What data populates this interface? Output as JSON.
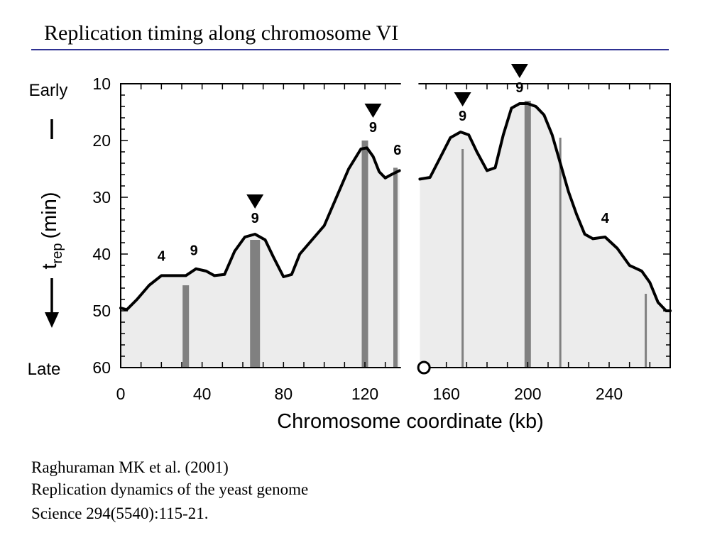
{
  "slide": {
    "title": "Replication timing along chromosome VI"
  },
  "reference": {
    "line1": "Raghuraman MK et al. (2001)",
    "line2": "Replication dynamics of the yeast genome",
    "line3": "Science 294(5540):115-21."
  },
  "colors": {
    "title_rule": "#2e3192",
    "area_fill": "#ececec",
    "curve": "#000000",
    "origin_bar": "#808080"
  },
  "chart_data": {
    "type": "area",
    "title": "",
    "xlabel": "Chromosome coordinate (kb)",
    "ylabel": "t",
    "ylabel_sub": "rep",
    "ylabel_unit": "(min)",
    "early_label": "Early",
    "late_label": "Late",
    "xlim": [
      0,
      270
    ],
    "ylim": [
      10,
      60
    ],
    "y_inverted": true,
    "x_ticks": [
      0,
      40,
      80,
      120,
      160,
      200,
      240
    ],
    "y_ticks": [
      10,
      20,
      30,
      40,
      50,
      60
    ],
    "gap": [
      137,
      147
    ],
    "centromere_kb": 149,
    "series": [
      {
        "segment": "left",
        "points": [
          [
            0,
            49.5
          ],
          [
            3,
            49.8
          ],
          [
            8,
            48
          ],
          [
            14,
            45.5
          ],
          [
            20,
            43.8
          ],
          [
            27,
            43.8
          ],
          [
            32,
            43.8
          ],
          [
            37,
            42.6
          ],
          [
            42,
            43
          ],
          [
            46,
            43.8
          ],
          [
            51,
            43.6
          ],
          [
            56,
            39.5
          ],
          [
            61,
            37
          ],
          [
            66,
            36.5
          ],
          [
            71,
            37.5
          ],
          [
            75,
            40.5
          ],
          [
            80,
            44
          ],
          [
            84,
            43.6
          ],
          [
            88,
            40
          ],
          [
            94,
            37.5
          ],
          [
            100,
            35
          ],
          [
            106,
            30
          ],
          [
            112,
            25
          ],
          [
            118,
            21.5
          ],
          [
            121,
            21.3
          ],
          [
            124,
            22.8
          ],
          [
            127,
            25.5
          ],
          [
            130,
            26.6
          ],
          [
            133,
            26
          ],
          [
            137,
            25.3
          ]
        ]
      },
      {
        "segment": "right",
        "points": [
          [
            147,
            26.8
          ],
          [
            152,
            26.5
          ],
          [
            157,
            23
          ],
          [
            162,
            19.5
          ],
          [
            167,
            18.5
          ],
          [
            171,
            19
          ],
          [
            175,
            22
          ],
          [
            180,
            25.3
          ],
          [
            184,
            24.8
          ],
          [
            188,
            19
          ],
          [
            192,
            14.3
          ],
          [
            196,
            13.5
          ],
          [
            200,
            13.5
          ],
          [
            204,
            14
          ],
          [
            208,
            15.5
          ],
          [
            212,
            19
          ],
          [
            216,
            24
          ],
          [
            220,
            29
          ],
          [
            224,
            33
          ],
          [
            228,
            36.5
          ],
          [
            232,
            37.3
          ],
          [
            238,
            37
          ],
          [
            244,
            39
          ],
          [
            250,
            42
          ],
          [
            256,
            43
          ],
          [
            260,
            45
          ],
          [
            264,
            48.5
          ],
          [
            268,
            50
          ],
          [
            270,
            50
          ]
        ]
      }
    ],
    "origins": [
      {
        "kb": 32,
        "t": 45.5,
        "weight": "medium"
      },
      {
        "kb": 66,
        "t": 37.5,
        "weight": "heavy"
      },
      {
        "kb": 120,
        "t": 20,
        "weight": "medium"
      },
      {
        "kb": 135,
        "t": 24.8,
        "weight": "thin"
      },
      {
        "kb": 168,
        "t": 21.5,
        "weight": "hair"
      },
      {
        "kb": 200,
        "t": 13,
        "weight": "medium"
      },
      {
        "kb": 216,
        "t": 19.5,
        "weight": "hair"
      },
      {
        "kb": 258,
        "t": 47,
        "weight": "hair"
      }
    ],
    "annotations": [
      {
        "text": "4",
        "kb": 20,
        "t": 41.2,
        "arrow": false
      },
      {
        "text": "9",
        "kb": 36,
        "t": 40.2,
        "arrow": false
      },
      {
        "text": "9",
        "kb": 66,
        "t": 34.5,
        "arrow": true
      },
      {
        "text": "9",
        "kb": 124,
        "t": 18.5,
        "arrow": true
      },
      {
        "text": "6",
        "kb": 136,
        "t": 22.5,
        "arrow": false
      },
      {
        "text": "9",
        "kb": 168,
        "t": 16.5,
        "arrow": true
      },
      {
        "text": "9",
        "kb": 196,
        "t": 11.5,
        "arrow": true
      },
      {
        "text": "4",
        "kb": 238,
        "t": 34.5,
        "arrow": false
      }
    ]
  }
}
